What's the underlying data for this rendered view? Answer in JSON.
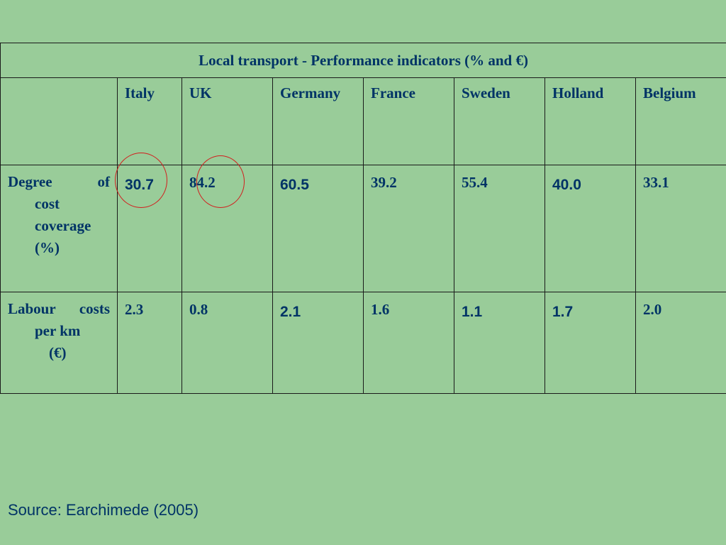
{
  "table": {
    "title": "Local transport - Performance indicators (% and €)",
    "columns": [
      "Italy",
      "UK",
      "Germany",
      "France",
      "Sweden",
      "Holland",
      "Belgium"
    ],
    "rows": [
      {
        "label_lines": [
          "Degree",
          "of",
          "cost",
          "coverage",
          "(%)"
        ],
        "values": [
          "30.7",
          "84.2",
          "60.5",
          "39.2",
          "55.4",
          "40.0",
          "33.1"
        ]
      },
      {
        "label_lines": [
          "Labour",
          "costs",
          "per km",
          "(€)"
        ],
        "values": [
          "2.3",
          "0.8",
          "2.1",
          "1.6",
          "1.1",
          "1.7",
          "2.0"
        ]
      }
    ],
    "highlighted_cells": [
      "Italy degree of cost coverage",
      "UK degree of cost coverage"
    ],
    "highlight_color": "#d21e1e",
    "text_color": "#003366",
    "background_color": "#99cc99"
  },
  "source": "Source: Earchimede (2005)"
}
